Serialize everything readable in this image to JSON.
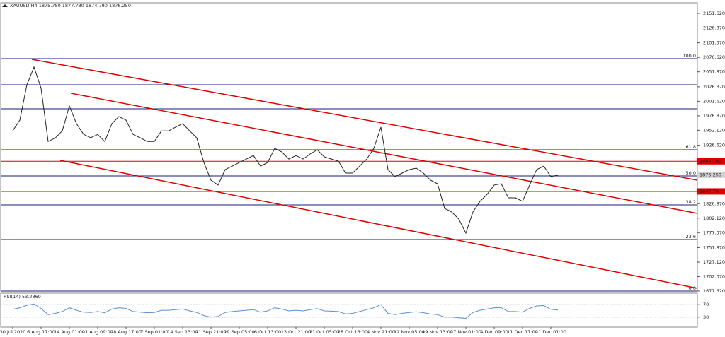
{
  "chart_data": [
    {
      "type": "line",
      "title": "XAUUSD,H4  1875.780 1877.780 1874.790 1876.250",
      "categories": [
        "30 Jul 2020",
        null,
        null,
        null,
        "6 Aug 17:00",
        null,
        null,
        null,
        "14 Aug 01:00",
        null,
        null,
        null,
        "21 Aug 09:00",
        null,
        null,
        null,
        "28 Aug 17:00",
        null,
        null,
        null,
        "7 Sep 01:00",
        null,
        null,
        null,
        "14 Sep 13:00",
        null,
        null,
        null,
        "21 Sep 21:00",
        null,
        null,
        null,
        "29 Sep 05:00",
        null,
        null,
        null,
        "6 Oct 13:00",
        null,
        null,
        null,
        "13 Oct 21:00",
        null,
        null,
        null,
        "21 Oct 05:00",
        null,
        null,
        null,
        "28 Oct 13:00",
        null,
        null,
        null,
        "4 Nov 21:00",
        null,
        null,
        null,
        "12 Nov 05:00",
        null,
        null,
        null,
        "19 Nov 13:00",
        null,
        null,
        null,
        "27 Nov 01:00",
        null,
        null,
        null,
        "4 Dec 09:00",
        null,
        null,
        null,
        "11 Dec 17:00",
        null,
        null,
        null,
        "21 Dec 01:00",
        null,
        null,
        null,
        null,
        null,
        null,
        null,
        null,
        null,
        null,
        null,
        null,
        null,
        null,
        null,
        null,
        null,
        null,
        null,
        null
      ],
      "series": [
        {
          "color": "#222222",
          "values": [
            1951.4,
            1969.5,
            2029.8,
            2060,
            2024,
            1933,
            1939,
            1951,
            1993.6,
            1963.5,
            1945.4,
            1939.4,
            1945,
            1933,
            1963.5,
            1975.5,
            1969.5,
            1945,
            1939.4,
            1933,
            1933,
            1951,
            1951,
            1957.5,
            1963.5,
            1951,
            1939,
            1897,
            1867,
            1858.6,
            1885,
            1891,
            1897,
            1903,
            1909,
            1891,
            1897,
            1921.3,
            1915.2,
            1903,
            1909,
            1903,
            1911.6,
            1918.9,
            1906.8,
            1903,
            1899.6,
            1879,
            1879,
            1891,
            1903,
            1921.3,
            1957.5,
            1885,
            1873,
            1879,
            1885,
            1887.5,
            1879,
            1867,
            1861,
            1818.8,
            1812.7,
            1800.7,
            1776.5,
            1812.7,
            1830.8,
            1842.9,
            1858.6,
            1861,
            1836.8,
            1836.8,
            1830.8,
            1858.6,
            1885,
            1891,
            1873,
            1875.5,
            null,
            null,
            null,
            null,
            null,
            null,
            null,
            null,
            null,
            null,
            null,
            null,
            null,
            null,
            null,
            null,
            null,
            null,
            null
          ]
        }
      ],
      "ylim": [
        1677.62,
        2168.5
      ],
      "yticks": [
        {
          "value": 2151.62,
          "label": "2151.620"
        },
        {
          "value": 2126.87,
          "label": "2126.870"
        },
        {
          "value": 2101.37,
          "label": "2101.370"
        },
        {
          "value": 2076.62,
          "label": "2076.620"
        },
        {
          "value": 2051.87,
          "label": "2051.870"
        },
        {
          "value": 2026.37,
          "label": "2026.370"
        },
        {
          "value": 2001.62,
          "label": "2001.620"
        },
        {
          "value": 1976.87,
          "label": "1976.870"
        },
        {
          "value": 1952.12,
          "label": "1952.120"
        },
        {
          "value": 1926.62,
          "label": "1926.620"
        },
        {
          "value": 1826.87,
          "label": "1826.870"
        },
        {
          "value": 1802.12,
          "label": "1802.120"
        },
        {
          "value": 1777.37,
          "label": "1777.370"
        },
        {
          "value": 1751.87,
          "label": "1751.870"
        },
        {
          "value": 1727.12,
          "label": "1727.120"
        },
        {
          "value": 1702.37,
          "label": "1702.370"
        },
        {
          "value": 1677.62,
          "label": "1677.620"
        }
      ],
      "fib_levels": [
        {
          "value": 2074.4,
          "label": "100.0"
        },
        {
          "value": 1918.8,
          "label": "61.8"
        },
        {
          "value": 1874.2,
          "label": "50.0"
        },
        {
          "value": 1824.8,
          "label": "38.2"
        },
        {
          "value": 1765.7,
          "label": "23.6"
        },
        {
          "value": 1677.62,
          "label": "0.0"
        }
      ],
      "level_color": "#1b1b7a",
      "hlines": [
        2029.8,
        1988.8
      ],
      "price_lines": [
        {
          "value": 1899.191,
          "color": "#e00000"
        },
        {
          "value": 1847.74,
          "color": "#e00000"
        }
      ],
      "last_price": {
        "value": 1876.25,
        "label": "1876.250"
      },
      "channel_color": "#e00000",
      "channel": [
        {
          "x": [
            2.7,
            96.7
          ],
          "y": [
            2073.2,
            1867
          ]
        },
        {
          "x": [
            8.2,
            96.7
          ],
          "y": [
            2015.4,
            1810.3
          ]
        },
        {
          "x": [
            6.7,
            96.7
          ],
          "y": [
            1900.8,
            1682.4
          ]
        }
      ]
    },
    {
      "type": "line",
      "title": "RSI(14) 53.2869",
      "series": [
        {
          "color": "#5b8fd6",
          "values": [
            55,
            60,
            68,
            72,
            58,
            38,
            42,
            48,
            60,
            52,
            46,
            45,
            48,
            44,
            56,
            60,
            58,
            48,
            46,
            44,
            45,
            52,
            52,
            54,
            56,
            50,
            45,
            35,
            30,
            32,
            45,
            48,
            50,
            52,
            54,
            46,
            50,
            60,
            56,
            50,
            52,
            50,
            54,
            57,
            50,
            49,
            48,
            40,
            42,
            48,
            54,
            60,
            70,
            42,
            38,
            42,
            45,
            47,
            44,
            40,
            38,
            30,
            30,
            28,
            26,
            45,
            52,
            56,
            60,
            60,
            48,
            48,
            46,
            58,
            66,
            67,
            55,
            53,
            null,
            null,
            null,
            null,
            null,
            null,
            null,
            null,
            null,
            null,
            null,
            null,
            null,
            null,
            null,
            null,
            null,
            null,
            null
          ]
        }
      ],
      "ylim": [
        0,
        100
      ],
      "yticks": [
        70,
        30
      ]
    }
  ]
}
